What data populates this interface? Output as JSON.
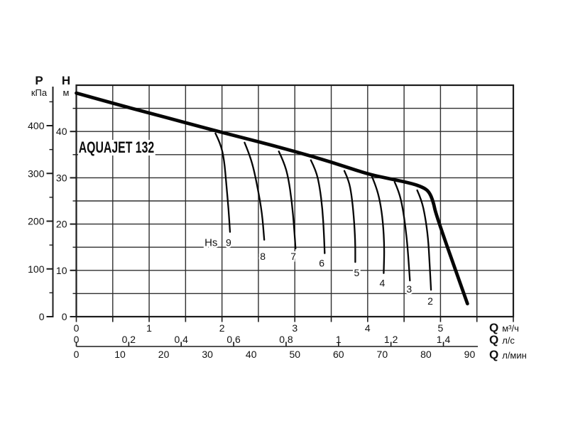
{
  "chart_data": {
    "type": "line",
    "title": "AQUAJET 132",
    "grid": true,
    "y_axes": [
      {
        "id": "pressure",
        "symbol": "P",
        "unit": "кПа",
        "range": [
          0,
          482
        ],
        "major_ticks": [
          0,
          100,
          200,
          300,
          400
        ],
        "minor_ticks": [
          50,
          150,
          250,
          350,
          450
        ]
      },
      {
        "id": "head",
        "symbol": "H",
        "unit": "м",
        "range": [
          0,
          50
        ],
        "major_ticks": [
          0,
          10,
          20,
          30,
          40
        ],
        "minor_ticks": [
          5,
          15,
          25,
          35,
          45
        ],
        "grid_step": 5
      }
    ],
    "x_axes": [
      {
        "id": "flow-m3h",
        "symbol": "Q",
        "unit": "м³/ч",
        "range": [
          0,
          6
        ],
        "to_m3h": 1,
        "minor_step": 0.5,
        "ticks": [
          {
            "v": 0,
            "t": "0"
          },
          {
            "v": 1,
            "t": "1"
          },
          {
            "v": 2,
            "t": "2"
          },
          {
            "v": 3,
            "t": "3"
          },
          {
            "v": 4,
            "t": "4"
          },
          {
            "v": 5,
            "t": "5"
          }
        ]
      },
      {
        "id": "flow-ls",
        "symbol": "Q",
        "unit": "л/с",
        "to_m3h": 3.6,
        "ticks": [
          {
            "v": 0,
            "t": "0"
          },
          {
            "v": 0.2,
            "t": "0,2"
          },
          {
            "v": 0.4,
            "t": "0,4"
          },
          {
            "v": 0.6,
            "t": "0,6"
          },
          {
            "v": 0.8,
            "t": "0,8"
          },
          {
            "v": 1,
            "t": "1"
          },
          {
            "v": 1.2,
            "t": "1,2"
          },
          {
            "v": 1.4,
            "t": "1,4"
          }
        ]
      },
      {
        "id": "flow-lmin",
        "symbol": "Q",
        "unit": "л/мин",
        "to_m3h": 0.06,
        "ticks": [
          {
            "v": 0,
            "t": "0"
          },
          {
            "v": 10,
            "t": "10"
          },
          {
            "v": 20,
            "t": "20"
          },
          {
            "v": 30,
            "t": "30"
          },
          {
            "v": 40,
            "t": "40"
          },
          {
            "v": 50,
            "t": "50"
          },
          {
            "v": 60,
            "t": "60"
          },
          {
            "v": 70,
            "t": "70"
          },
          {
            "v": 80,
            "t": "80"
          },
          {
            "v": 90,
            "t": "90"
          }
        ]
      }
    ],
    "series": [
      {
        "name": "pump-curve",
        "style": "thick",
        "points": [
          [
            0,
            48.3
          ],
          [
            0.5,
            46.1
          ],
          [
            1,
            44.0
          ],
          [
            1.5,
            41.9
          ],
          [
            2,
            39.8
          ],
          [
            2.5,
            37.8
          ],
          [
            3,
            35.7
          ],
          [
            3.5,
            33.4
          ],
          [
            4,
            30.8
          ],
          [
            4.3,
            29.8
          ],
          [
            4.6,
            28.8
          ],
          [
            4.75,
            28.0
          ],
          [
            4.84,
            27.1
          ],
          [
            4.9,
            24.9
          ],
          [
            4.94,
            21.9
          ],
          [
            5.37,
            2.8
          ]
        ]
      },
      {
        "name": "hs-curve-9",
        "label": "9",
        "label_at": [
          2.09,
          16.0
        ],
        "points": [
          [
            1.91,
            39.6
          ],
          [
            1.98,
            37.4
          ],
          [
            2.03,
            33.9
          ],
          [
            2.06,
            28.5
          ],
          [
            2.09,
            23.2
          ],
          [
            2.11,
            18.3
          ]
        ]
      },
      {
        "name": "hs-curve-8",
        "label": "8",
        "label_at": [
          2.56,
          13.0
        ],
        "points": [
          [
            2.31,
            37.6
          ],
          [
            2.37,
            35.3
          ],
          [
            2.43,
            32.3
          ],
          [
            2.49,
            27.8
          ],
          [
            2.55,
            22.4
          ],
          [
            2.58,
            16.6
          ]
        ]
      },
      {
        "name": "hs-curve-7",
        "label": "7",
        "label_at": [
          2.98,
          13.0
        ],
        "points": [
          [
            2.78,
            35.7
          ],
          [
            2.85,
            33.4
          ],
          [
            2.91,
            30.1
          ],
          [
            2.96,
            24.7
          ],
          [
            2.99,
            19.3
          ],
          [
            3.01,
            14.7
          ]
        ]
      },
      {
        "name": "hs-curve-6",
        "label": "6",
        "label_at": [
          3.37,
          11.6
        ],
        "points": [
          [
            3.22,
            33.8
          ],
          [
            3.29,
            31.6
          ],
          [
            3.34,
            28.2
          ],
          [
            3.38,
            23.2
          ],
          [
            3.4,
            17.8
          ],
          [
            3.41,
            13.7
          ]
        ]
      },
      {
        "name": "hs-curve-5",
        "label": "5",
        "label_at": [
          3.85,
          9.5
        ],
        "points": [
          [
            3.68,
            31.5
          ],
          [
            3.74,
            29.5
          ],
          [
            3.78,
            26.2
          ],
          [
            3.81,
            21.6
          ],
          [
            3.83,
            16.3
          ],
          [
            3.83,
            11.8
          ]
        ]
      },
      {
        "name": "hs-curve-4",
        "label": "4",
        "label_at": [
          4.2,
          7.3
        ],
        "points": [
          [
            4.05,
            30.6
          ],
          [
            4.11,
            28.4
          ],
          [
            4.17,
            25.0
          ],
          [
            4.21,
            20.5
          ],
          [
            4.23,
            15.0
          ],
          [
            4.22,
            9.4
          ]
        ]
      },
      {
        "name": "hs-curve-3",
        "label": "3",
        "label_at": [
          4.57,
          6.0
        ],
        "points": [
          [
            4.37,
            29.1
          ],
          [
            4.43,
            27.0
          ],
          [
            4.48,
            23.6
          ],
          [
            4.52,
            19.3
          ],
          [
            4.55,
            14.7
          ],
          [
            4.58,
            7.8
          ]
        ]
      },
      {
        "name": "hs-curve-2",
        "label": "2",
        "label_at": [
          4.86,
          3.4
        ],
        "points": [
          [
            4.68,
            27.3
          ],
          [
            4.74,
            25.2
          ],
          [
            4.79,
            21.6
          ],
          [
            4.83,
            17.0
          ],
          [
            4.85,
            11.7
          ],
          [
            4.87,
            5.8
          ]
        ]
      }
    ],
    "annotations": [
      {
        "id": "hs-series-label",
        "text": "Hs",
        "at": [
          1.85,
          16.0
        ]
      }
    ]
  }
}
